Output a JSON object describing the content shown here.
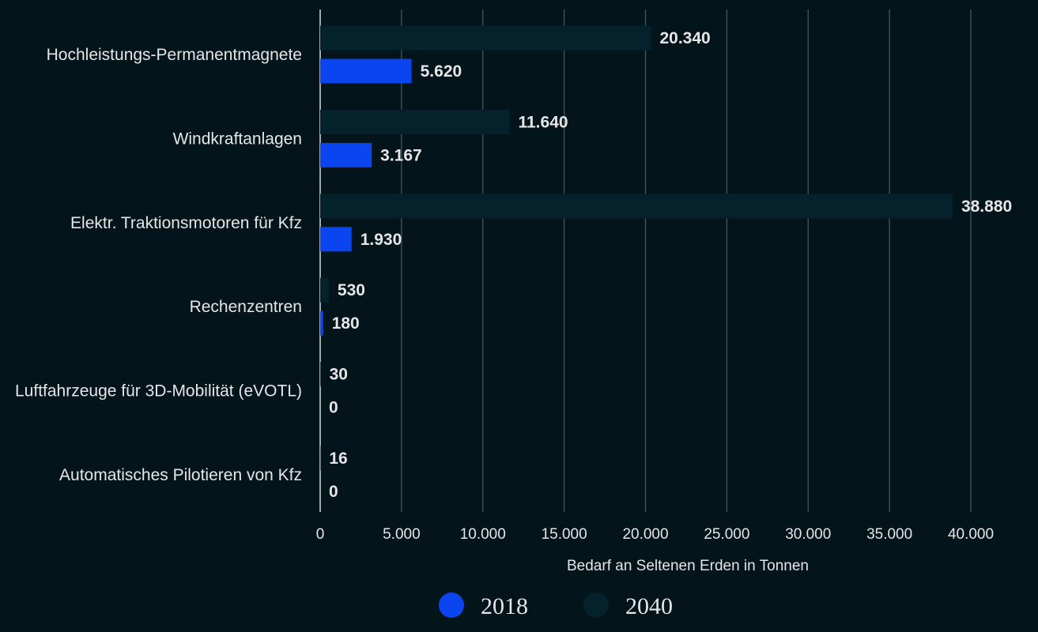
{
  "chart_data": {
    "type": "bar",
    "orientation": "horizontal",
    "categories": [
      "Hochleistungs-Permanentmagnete",
      "Windkraftanlagen",
      "Elektr. Traktionsmotoren für Kfz",
      "Rechenzentren",
      "Luftfahrzeuge für 3D-Mobilität (eVOTL)",
      "Automatisches Pilotieren von Kfz"
    ],
    "series": [
      {
        "name": "2040",
        "values": [
          20340,
          11640,
          38880,
          530,
          30,
          16
        ],
        "labels": [
          "20.340",
          "11.640",
          "38.880",
          "530",
          "30",
          "16"
        ],
        "color": "#05222c"
      },
      {
        "name": "2018",
        "values": [
          5620,
          3167,
          1930,
          180,
          0,
          0
        ],
        "labels": [
          "5.620",
          "3.167",
          "1.930",
          "180",
          "0",
          "0"
        ],
        "color": "#0b45f0"
      }
    ],
    "xlim": [
      0,
      40000
    ],
    "xticks": [
      0,
      5000,
      10000,
      15000,
      20000,
      25000,
      30000,
      35000,
      40000
    ],
    "xtick_labels": [
      "0",
      "5.000",
      "10.000",
      "15.000",
      "20.000",
      "25.000",
      "30.000",
      "35.000",
      "40.000"
    ],
    "xlabel": "Bedarf an Seltenen Erden in Tonnen",
    "grid": true,
    "legend": {
      "position": "bottom",
      "entries": [
        {
          "label": "2018",
          "color": "#0b45f0"
        },
        {
          "label": "2040",
          "color": "#05222c"
        }
      ]
    }
  }
}
